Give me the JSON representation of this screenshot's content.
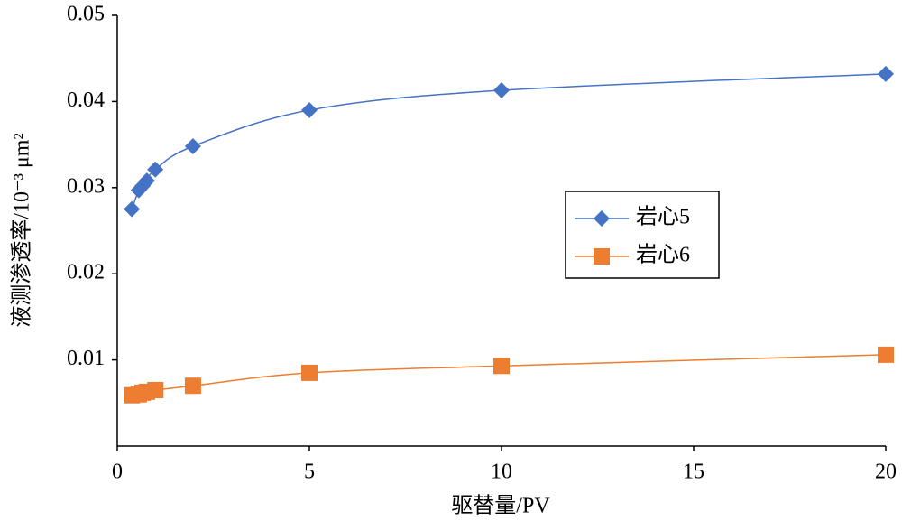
{
  "chart_data": {
    "type": "line",
    "x_label": "驱替量/PV",
    "y_label": "液测渗透率/10⁻³ μm²",
    "x": [
      0.38,
      0.56,
      0.66,
      0.77,
      0.99,
      1.97,
      5,
      10,
      20
    ],
    "series": [
      {
        "name": "岩心5",
        "color": "#4472c4",
        "marker": "diamond",
        "values": [
          0.0275,
          0.0297,
          0.0302,
          0.0308,
          0.0321,
          0.0348,
          0.039,
          0.0413,
          0.0432
        ]
      },
      {
        "name": "岩心6",
        "color": "#ed7d31",
        "marker": "square",
        "values": [
          0.0059,
          0.006,
          0.0062,
          0.0063,
          0.0065,
          0.007,
          0.0085,
          0.0093,
          0.0106
        ]
      }
    ],
    "xlim": [
      0,
      20
    ],
    "xticks": [
      0,
      5,
      10,
      15,
      20
    ],
    "ylim": [
      0,
      0.05
    ],
    "yticks": [
      0.01,
      0.02,
      0.03,
      0.04,
      0.05
    ],
    "smooth": true
  }
}
